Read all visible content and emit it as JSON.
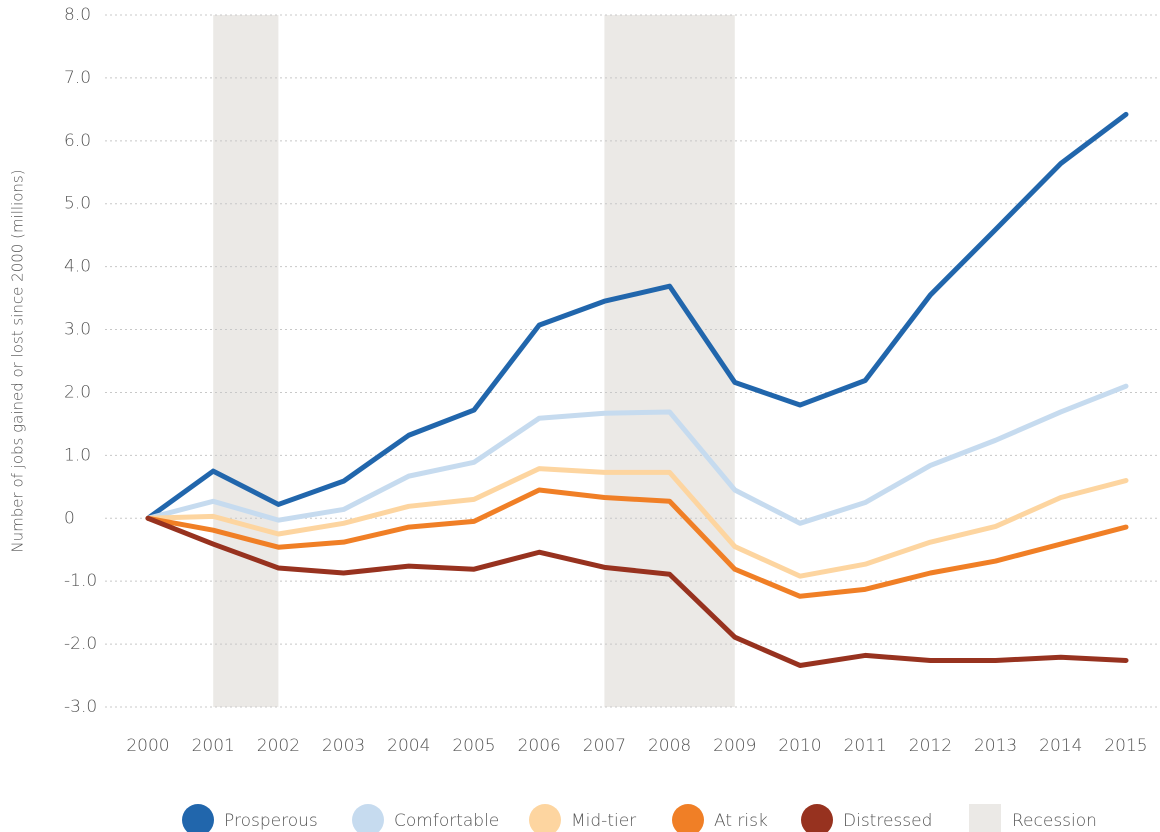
{
  "chart_data": {
    "type": "line",
    "y_label": "Number of jobs gained or lost since 2000 (millions)",
    "x": [
      2000,
      2001,
      2002,
      2003,
      2004,
      2005,
      2006,
      2007,
      2008,
      2009,
      2010,
      2011,
      2012,
      2013,
      2014,
      2015
    ],
    "xlim": [
      2000,
      2015
    ],
    "xticks": [
      2000,
      2001,
      2002,
      2003,
      2004,
      2005,
      2006,
      2007,
      2008,
      2009,
      2010,
      2011,
      2012,
      2013,
      2014,
      2015
    ],
    "ylim": [
      -3,
      8
    ],
    "yticks": [
      {
        "value": -3,
        "label": "-3.0"
      },
      {
        "value": -2,
        "label": "-2.0"
      },
      {
        "value": -1,
        "label": "-1.0"
      },
      0,
      {
        "value": 1,
        "label": "1.0"
      },
      {
        "value": 2,
        "label": "2.0"
      },
      {
        "value": 3,
        "label": "3.0"
      },
      {
        "value": 4,
        "label": "4.0"
      },
      {
        "value": 5,
        "label": "5.0"
      },
      {
        "value": 6,
        "label": "6.0"
      },
      {
        "value": 7,
        "label": "7.0"
      },
      {
        "value": 8,
        "label": "8.0"
      }
    ],
    "grid": true,
    "legend": "bottom",
    "recession": {
      "name": "Recession",
      "color": "#ebe9e6",
      "periods": [
        [
          2001,
          2002
        ],
        [
          2007,
          2009
        ]
      ]
    },
    "series": [
      {
        "name": "Prosperous",
        "color": "#2166ac",
        "values": [
          0,
          0.75,
          0.22,
          0.59,
          1.32,
          1.72,
          3.07,
          3.45,
          3.69,
          2.16,
          1.8,
          2.19,
          3.55,
          4.59,
          5.64,
          6.42
        ]
      },
      {
        "name": "Comfortable",
        "color": "#c6dbef",
        "values": [
          0,
          0.27,
          -0.03,
          0.14,
          0.67,
          0.89,
          1.59,
          1.67,
          1.69,
          0.45,
          -0.08,
          0.25,
          0.84,
          1.24,
          1.69,
          2.1
        ]
      },
      {
        "name": "Mid-tier",
        "color": "#fdd5a0",
        "values": [
          0,
          0.03,
          -0.25,
          -0.08,
          0.19,
          0.3,
          0.79,
          0.73,
          0.73,
          -0.45,
          -0.92,
          -0.73,
          -0.38,
          -0.13,
          0.33,
          0.6
        ]
      },
      {
        "name": "At risk",
        "color": "#f07f26",
        "values": [
          0,
          -0.19,
          -0.46,
          -0.38,
          -0.14,
          -0.05,
          0.45,
          0.33,
          0.27,
          -0.81,
          -1.24,
          -1.13,
          -0.87,
          -0.68,
          -0.41,
          -0.14
        ]
      },
      {
        "name": "Distressed",
        "color": "#97321f",
        "values": [
          0,
          -0.41,
          -0.79,
          -0.87,
          -0.76,
          -0.81,
          -0.54,
          -0.78,
          -0.89,
          -1.89,
          -2.34,
          -2.18,
          -2.26,
          -2.26,
          -2.21,
          -2.26
        ]
      }
    ]
  }
}
